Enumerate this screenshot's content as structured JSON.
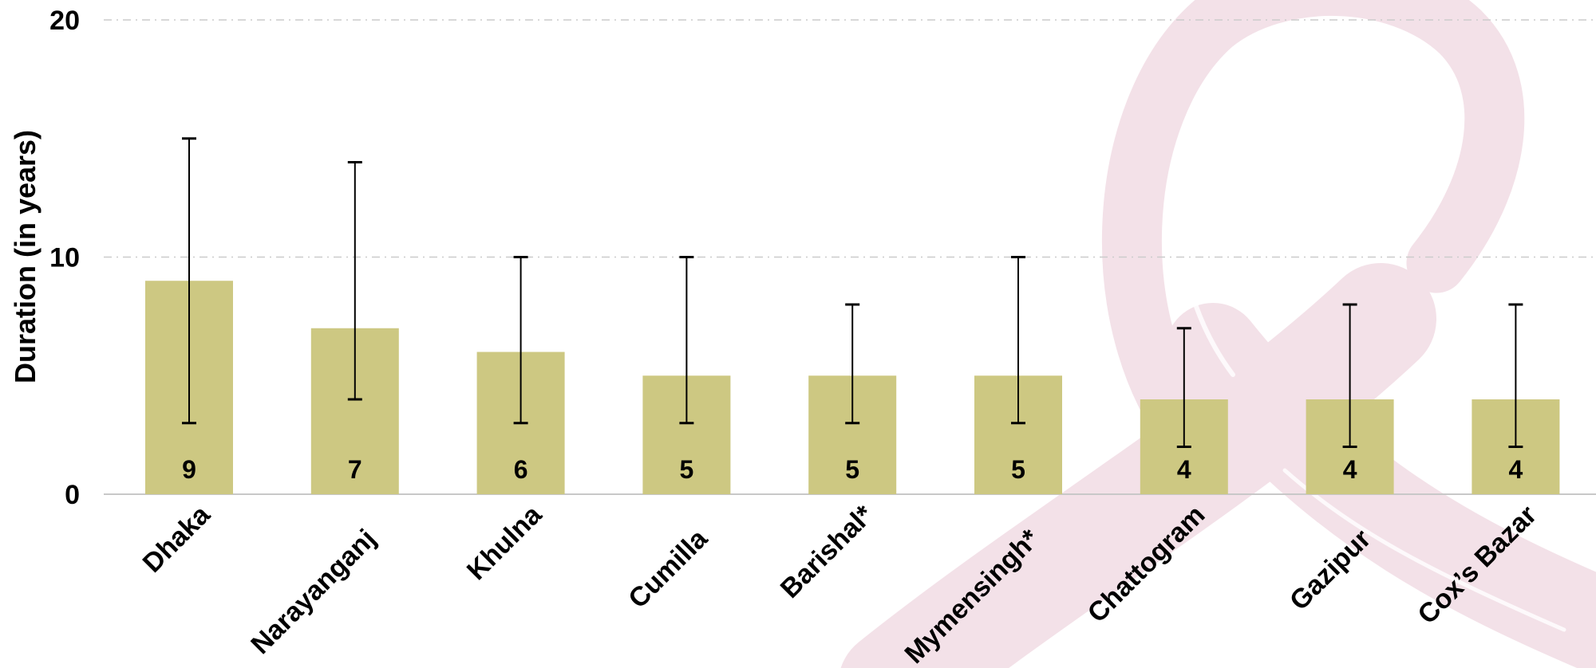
{
  "chart_data": {
    "type": "bar",
    "title": "",
    "xlabel": "",
    "ylabel": "Duration (in years)",
    "ylim": [
      0,
      20
    ],
    "yticks": [
      0,
      10,
      20
    ],
    "grid": "horizontal-dashed",
    "categories": [
      "Dhaka",
      "Narayanganj",
      "Khulna",
      "Cumilla",
      "Barishal*",
      "Mymensingh*",
      "Chattogram",
      "Gazipur",
      "Cox’s Bazar"
    ],
    "values": [
      9,
      7,
      6,
      5,
      5,
      5,
      4,
      4,
      4
    ],
    "error_low": [
      3,
      4,
      3,
      3,
      3,
      3,
      2,
      2,
      2
    ],
    "error_high": [
      15,
      14,
      10,
      10,
      8,
      10,
      7,
      8,
      8
    ],
    "data_labels": [
      "9",
      "7",
      "6",
      "5",
      "5",
      "5",
      "4",
      "4",
      "4"
    ],
    "colors": {
      "bar": "#cdc882",
      "error_bar": "#000000",
      "grid": "#cccccc",
      "baseline": "#c8c8c8",
      "ribbon": "#f3e1e8"
    }
  }
}
